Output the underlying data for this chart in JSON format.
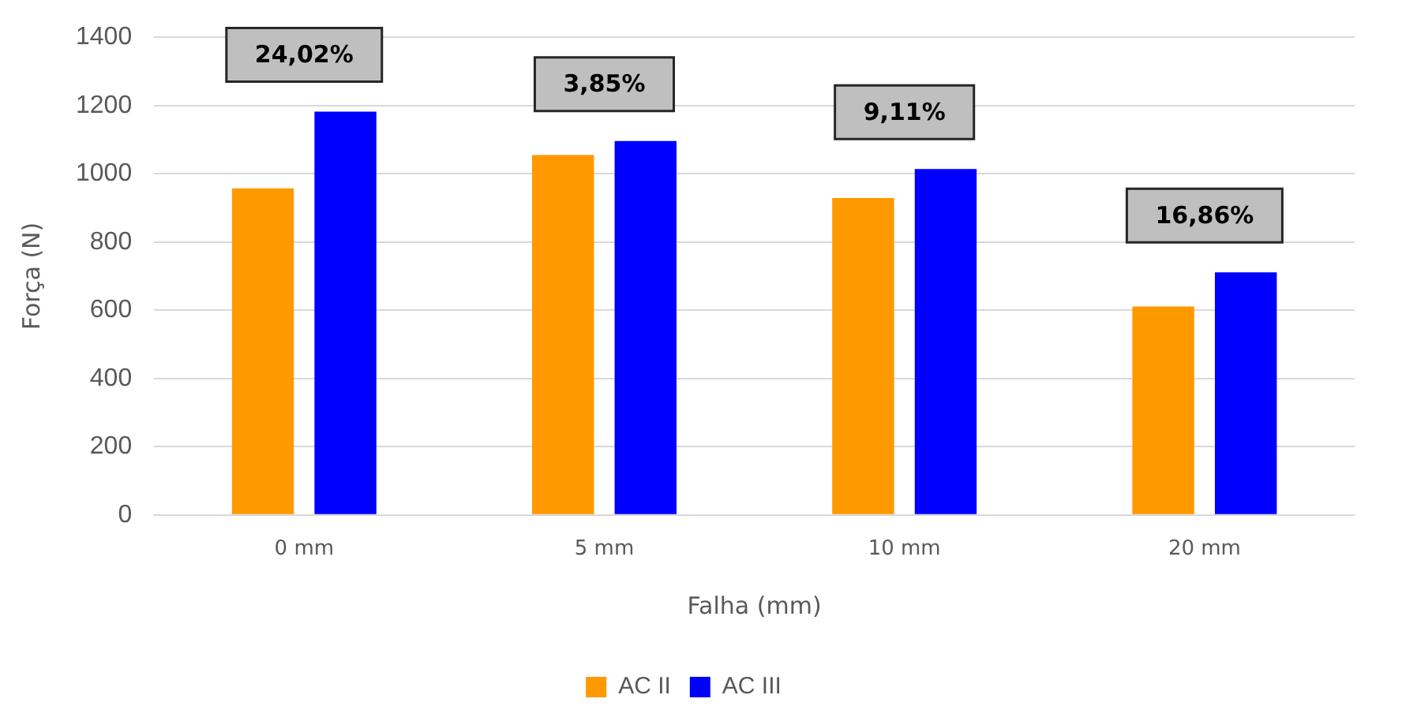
{
  "chart_data": {
    "type": "bar",
    "xlabel": "Falha (mm)",
    "ylabel": "Força (N)",
    "categories": [
      "0 mm",
      "5 mm",
      "10 mm",
      "20 mm"
    ],
    "series": [
      {
        "name": "AC II",
        "color": "#ff9900",
        "values": [
          957,
          1055,
          929,
          611
        ]
      },
      {
        "name": "AC III",
        "color": "#0000ff",
        "values": [
          1182,
          1096,
          1014,
          711
        ]
      }
    ],
    "ylim": [
      0,
      1400
    ],
    "yticks": [
      0,
      200,
      400,
      600,
      800,
      1000,
      1200,
      1400
    ],
    "grid": "y",
    "legend": "bottom",
    "annotations": [
      "24,02%",
      "3,85%",
      "9,11%",
      "16,86%"
    ]
  }
}
